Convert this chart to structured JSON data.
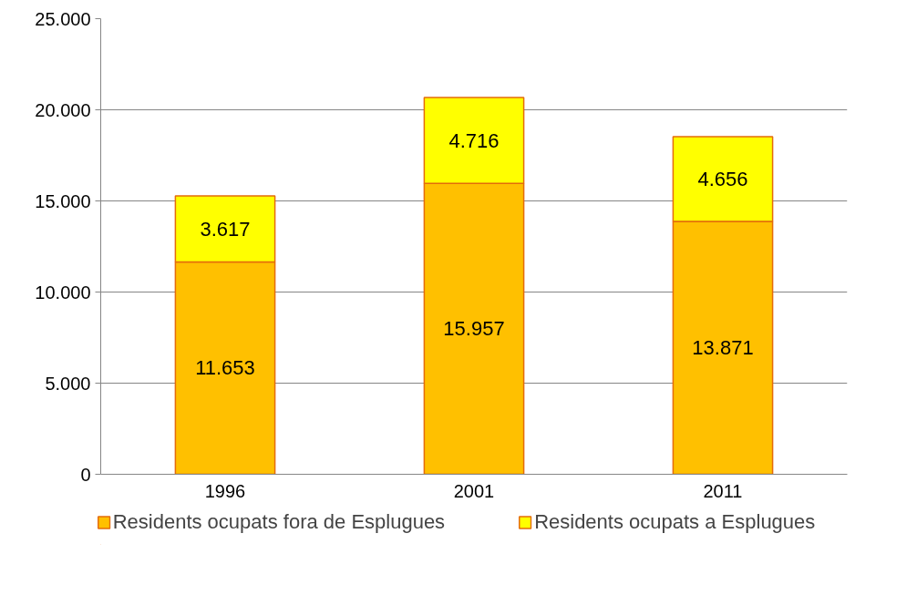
{
  "chart_data": {
    "type": "bar",
    "stacked": true,
    "categories": [
      "1996",
      "2001",
      "2011"
    ],
    "series": [
      {
        "name": "Residents ocupats fora de Esplugues",
        "color": "#ffc000",
        "values": [
          11653,
          15957,
          13871
        ],
        "value_labels": [
          "11.653",
          "15.957",
          "13.871"
        ]
      },
      {
        "name": "Residents ocupats a Esplugues",
        "color": "#ffff00",
        "values": [
          3617,
          4716,
          4656
        ],
        "value_labels": [
          "3.617",
          "4.716",
          "4.656"
        ]
      }
    ],
    "ylim": [
      0,
      25000
    ],
    "yticks": [
      0,
      {
        "value": 5000,
        "label": "5.000"
      },
      {
        "value": 10000,
        "label": "10.000"
      },
      {
        "value": 15000,
        "label": "15.000"
      },
      {
        "value": 20000,
        "label": "20.000"
      },
      {
        "value": 25000,
        "label": "25.000"
      }
    ],
    "grid": "y",
    "legend": "bottom"
  }
}
